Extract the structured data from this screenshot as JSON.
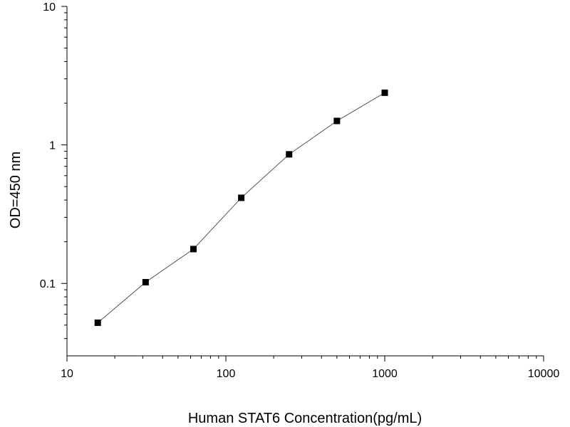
{
  "chart_data": {
    "type": "scatter",
    "xlabel": "Human STAT6 Concentration(pg/mL)",
    "ylabel": "OD=450 nm",
    "xscale": "log",
    "yscale": "log",
    "xlim": [
      10,
      10000
    ],
    "ylim": [
      0.03,
      10
    ],
    "xticks": [
      10,
      100,
      1000,
      10000
    ],
    "xtick_labels": [
      "10",
      "100",
      "1000",
      "10000"
    ],
    "yticks": [
      0.1,
      1,
      10
    ],
    "ytick_labels": [
      "0.1",
      "1",
      "10"
    ],
    "grid": false,
    "legend": "none",
    "series": [
      {
        "x": [
          15.625,
          31.25,
          62.5,
          125,
          250,
          500,
          1000
        ],
        "y": [
          0.052,
          0.102,
          0.177,
          0.415,
          0.855,
          1.49,
          2.38
        ],
        "marker": "square",
        "line": "connected",
        "marker_color": "#000000",
        "line_color": "#555555"
      }
    ]
  }
}
